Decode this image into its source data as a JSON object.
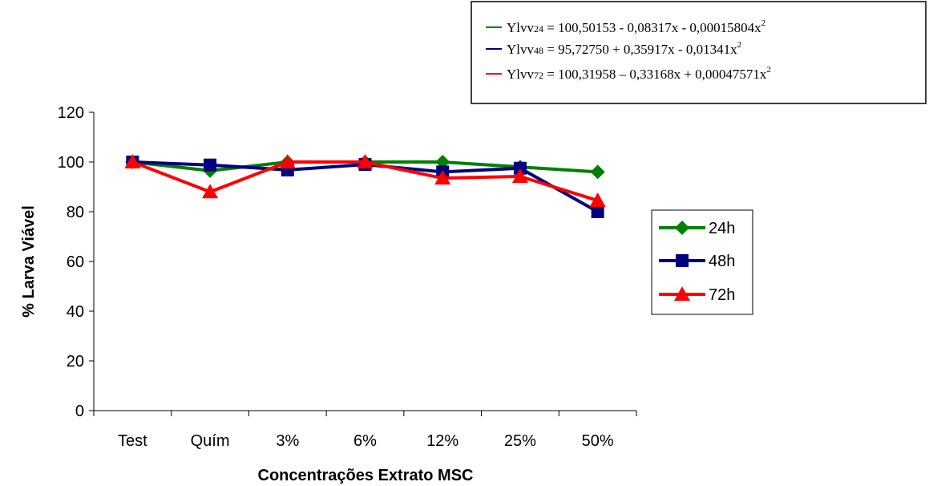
{
  "chart_data": {
    "type": "line",
    "categories": [
      "Test",
      "Quím",
      "3%",
      "6%",
      "12%",
      "25%",
      "50%"
    ],
    "series": [
      {
        "name": "24h",
        "color": "#008000",
        "marker": "diamond",
        "values": [
          100,
          96.5,
          100,
          100,
          100,
          98,
          96
        ]
      },
      {
        "name": "48h",
        "color": "#000080",
        "marker": "square",
        "values": [
          100,
          98.8,
          96.8,
          99,
          96,
          97.5,
          80
        ]
      },
      {
        "name": "72h",
        "color": "#ff0000",
        "marker": "triangle",
        "values": [
          100,
          88,
          100,
          100,
          93.5,
          94.2,
          84.5
        ]
      }
    ],
    "title": "",
    "xlabel": "Concentrações Extrato MSC",
    "ylabel": "% Larva Viável",
    "ylim": [
      0,
      120
    ],
    "yticks": [
      "0",
      "20",
      "40",
      "60",
      "80",
      "100",
      "120"
    ],
    "grid": false,
    "legend_position": "right"
  },
  "equations": [
    {
      "color": "#008000",
      "prefix": "Ylvv",
      "sub": "24",
      "text": " = 100,50153 - 0,08317x - 0,00015804x",
      "sup": "2"
    },
    {
      "color": "#000080",
      "prefix": "Ylvv",
      "sub": "48",
      "text": " = 95,72750 + 0,35917x - 0,01341x",
      "sup": "2"
    },
    {
      "color": "#ff0000",
      "prefix": "Ylvv",
      "sub": "72",
      "text": " = 100,31958 – 0,33168x + 0,00047571x",
      "sup": "2"
    }
  ]
}
